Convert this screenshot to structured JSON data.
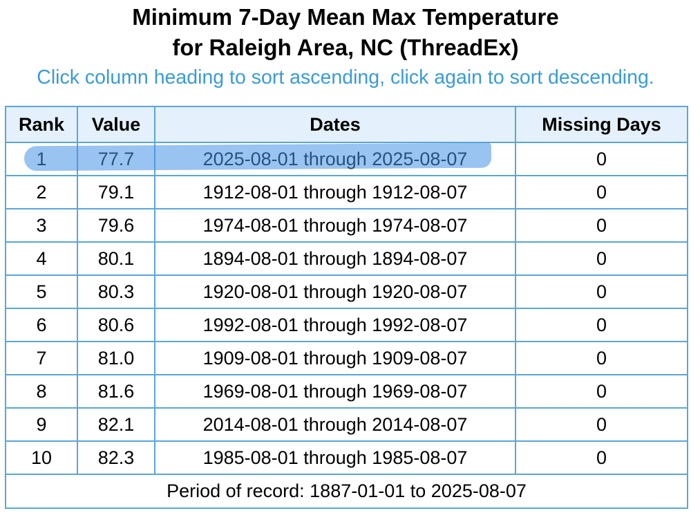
{
  "header": {
    "title_line1": "Minimum 7-Day Mean Max Temperature",
    "title_line2": "for Raleigh Area, NC (ThreadEx)",
    "sort_hint": "Click column heading to sort ascending, click again to sort descending."
  },
  "table": {
    "columns": [
      "Rank",
      "Value",
      "Dates",
      "Missing Days"
    ],
    "rows": [
      {
        "rank": "1",
        "value": "77.7",
        "dates": "2025-08-01 through 2025-08-07",
        "missing": "0"
      },
      {
        "rank": "2",
        "value": "79.1",
        "dates": "1912-08-01 through 1912-08-07",
        "missing": "0"
      },
      {
        "rank": "3",
        "value": "79.6",
        "dates": "1974-08-01 through 1974-08-07",
        "missing": "0"
      },
      {
        "rank": "4",
        "value": "80.1",
        "dates": "1894-08-01 through 1894-08-07",
        "missing": "0"
      },
      {
        "rank": "5",
        "value": "80.3",
        "dates": "1920-08-01 through 1920-08-07",
        "missing": "0"
      },
      {
        "rank": "6",
        "value": "80.6",
        "dates": "1992-08-01 through 1992-08-07",
        "missing": "0"
      },
      {
        "rank": "7",
        "value": "81.0",
        "dates": "1909-08-01 through 1909-08-07",
        "missing": "0"
      },
      {
        "rank": "8",
        "value": "81.6",
        "dates": "1969-08-01 through 1969-08-07",
        "missing": "0"
      },
      {
        "rank": "9",
        "value": "82.1",
        "dates": "2014-08-01 through 2014-08-07",
        "missing": "0"
      },
      {
        "rank": "10",
        "value": "82.3",
        "dates": "1985-08-01 through 1985-08-07",
        "missing": "0"
      }
    ],
    "footer": "Period of record: 1887-01-01 to 2025-08-07"
  },
  "colors": {
    "hint_text": "#3a9bd5",
    "table_border": "#5aa6d8",
    "header_bg": "#e4f0fb",
    "highlight_marker": "#4691e6"
  }
}
